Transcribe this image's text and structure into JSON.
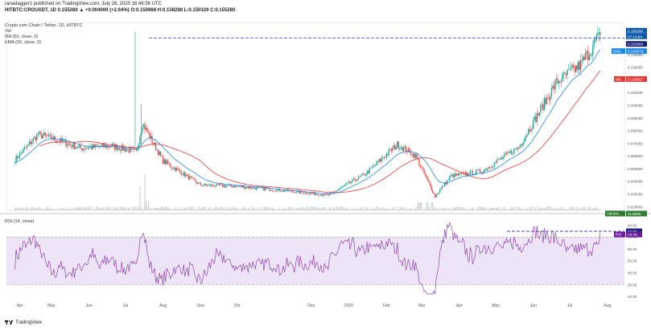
{
  "header": {
    "publish_line": "ranadagger1 published on TradingView.com, July 26, 2020 16:46:56 UTC",
    "symbol_line": "HITBTC:CROUSDT, 1D  0.155280 ▲ +0.004000 (+2.64%)  O:0.150868  H:0.158288  L:0.150329  C:0.155280"
  },
  "chart_title": "Crypto.com Chain / Tether, 1D, HITBTC",
  "indicators": {
    "vol": "Vol",
    "ma": "MA (50, close, 0)",
    "ema": "EMA (20, close, 0)",
    "rsi": "RSI (14, close)"
  },
  "colors": {
    "up": "#26a69a",
    "down": "#ef5350",
    "ma_line": "#e53935",
    "ema_line": "#1e88e5",
    "rsi_line": "#8e44ad",
    "rsi_band": "#ede4f7",
    "dashed": "#2a2ad0",
    "current_price": "#0b5aa8",
    "volume_tag": "#2e7d32"
  },
  "price_tags": {
    "current": "0.155280",
    "countdown": "07:13:04",
    "dashed": "0.153060",
    "ema_label": "EMA",
    "ema_value": "0.142678",
    "ma_label": "MA",
    "ma_value": "0.120627",
    "volume_label": "Volume",
    "volume_value": "11.883K"
  },
  "rsi_tags": {
    "dashed": "74.84",
    "rsi_label": "RSI",
    "rsi_value": "73.78"
  },
  "logo": {
    "text": "TradingView"
  },
  "chart_data": [
    {
      "type": "candlestick",
      "title": "Crypto.com Chain / Tether, 1D, HITBTC",
      "y_ticks": [
        "0.160000",
        "0.150000",
        "0.140000",
        "0.130000",
        "0.120000",
        "0.110000",
        "0.100000",
        "0.090000",
        "0.080000",
        "0.070000",
        "0.060000",
        "0.050000",
        "0.040000",
        "0.030000",
        "0.020000"
      ],
      "ylim": [
        0.017,
        0.164
      ],
      "x_ticks": [
        "Apr",
        "May",
        "Jun",
        "Jul",
        "Aug",
        "Sep",
        "Oct",
        "Dec",
        "2020",
        "Feb",
        "Mar",
        "Apr",
        "May",
        "Jun",
        "Jul",
        "Aug"
      ],
      "close_approx": {
        "x": [
          "2019-04-01",
          "2019-04-20",
          "2019-05-05",
          "2019-05-25",
          "2019-06-20",
          "2019-07-10",
          "2019-07-15",
          "2019-08-01",
          "2019-09-01",
          "2019-10-01",
          "2019-11-15",
          "2019-12-15",
          "2020-01-15",
          "2020-02-10",
          "2020-02-25",
          "2020-03-12",
          "2020-03-25",
          "2020-04-20",
          "2020-05-20",
          "2020-06-20",
          "2020-07-10",
          "2020-07-26"
        ],
        "close": [
          0.057,
          0.077,
          0.073,
          0.066,
          0.068,
          0.063,
          0.086,
          0.056,
          0.037,
          0.036,
          0.032,
          0.029,
          0.046,
          0.069,
          0.06,
          0.028,
          0.044,
          0.048,
          0.067,
          0.118,
          0.132,
          0.15528
        ]
      },
      "series": [
        {
          "name": "MA (50, close, 0)",
          "last": 0.120627
        },
        {
          "name": "EMA (20, close, 0)",
          "last": 0.142678
        }
      ],
      "horizontal_line": 0.15306,
      "volume": {
        "last": "11.883K"
      }
    },
    {
      "type": "line",
      "title": "RSI (14, close)",
      "y_ticks": [
        "80.00",
        "70.00",
        "60.00",
        "50.00",
        "40.00",
        "30.00",
        "20.00"
      ],
      "ylim": [
        18,
        83
      ],
      "band": [
        30,
        70
      ],
      "horizontal_line": 74.84,
      "series": [
        {
          "name": "RSI (14, close)",
          "last": 73.78
        }
      ]
    }
  ]
}
